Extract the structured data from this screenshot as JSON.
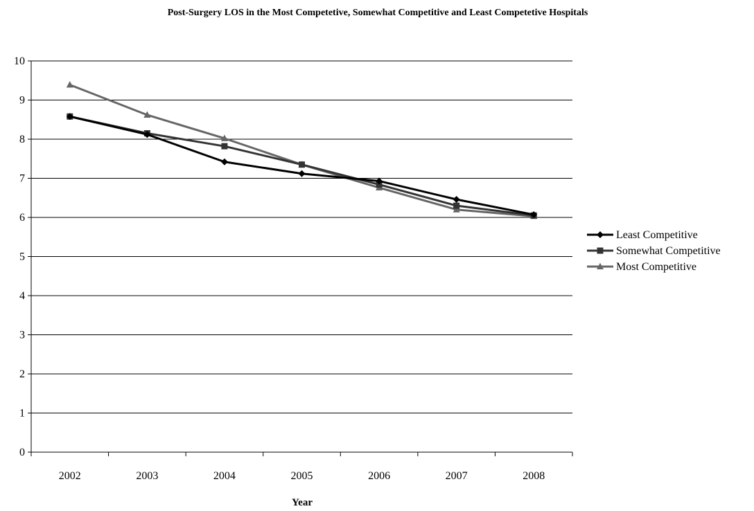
{
  "chart_data": {
    "type": "line",
    "title": "Post-Surgery LOS in the Most Competetive, Somewhat Competitive and Least Competetive Hospitals",
    "xlabel": "Year",
    "ylabel": "",
    "categories": [
      "2002",
      "2003",
      "2004",
      "2005",
      "2006",
      "2007",
      "2008"
    ],
    "ylim": [
      0,
      10
    ],
    "yticks": [
      "0",
      "1",
      "2",
      "3",
      "4",
      "5",
      "6",
      "7",
      "8",
      "9",
      "10"
    ],
    "grid": "horizontal",
    "legend_position": "right",
    "series": [
      {
        "name": "Least Competitive",
        "values": [
          8.58,
          8.12,
          7.42,
          7.12,
          6.93,
          6.46,
          6.07
        ],
        "color": "#000000",
        "marker": "diamond"
      },
      {
        "name": "Somewhat Competitive",
        "values": [
          8.58,
          8.15,
          7.82,
          7.35,
          6.84,
          6.3,
          6.05
        ],
        "color": "#333333",
        "marker": "square"
      },
      {
        "name": "Most Competitive",
        "values": [
          9.39,
          8.62,
          8.02,
          7.35,
          6.76,
          6.2,
          6.03
        ],
        "color": "#666666",
        "marker": "triangle"
      }
    ]
  }
}
